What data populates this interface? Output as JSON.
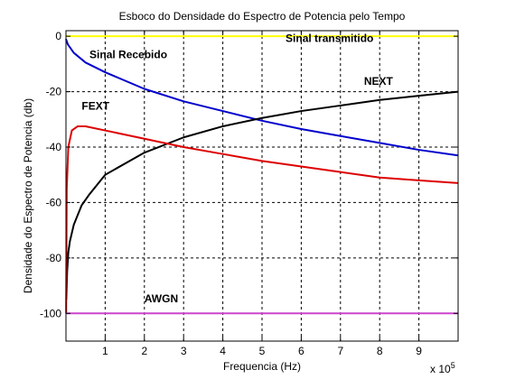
{
  "chart_data": {
    "type": "line",
    "title": "Esboco do Densidade do Espectro de Potencia pelo Tempo",
    "xlabel": "Frequencia (Hz)",
    "ylabel": "Densidade do Espectro de Potencia (db)",
    "x_exponent_label": "x 10",
    "x_exponent_power": "5",
    "xlim": [
      0,
      1000000
    ],
    "ylim": [
      -110,
      2
    ],
    "x_ticks": [
      100000,
      200000,
      300000,
      400000,
      500000,
      600000,
      700000,
      800000,
      900000
    ],
    "x_tick_labels": [
      "1",
      "2",
      "3",
      "4",
      "5",
      "6",
      "7",
      "8",
      "9"
    ],
    "y_ticks": [
      0,
      -20,
      -40,
      -60,
      -80,
      -100
    ],
    "y_tick_labels": [
      "0",
      "-20",
      "-40",
      "-60",
      "-80",
      "-100"
    ],
    "grid": true,
    "series": [
      {
        "name": "Sinal transmitido",
        "color": "#ffff00",
        "x": [
          0,
          1000000
        ],
        "y": [
          0,
          0
        ]
      },
      {
        "name": "Sinal Recebido",
        "color": "#0000cc",
        "x": [
          0,
          5000,
          20000,
          50000,
          100000,
          200000,
          300000,
          400000,
          500000,
          600000,
          700000,
          800000,
          900000,
          1000000
        ],
        "y": [
          -1,
          -3,
          -6,
          -9.5,
          -13,
          -19,
          -23.5,
          -27,
          -30.5,
          -33.5,
          -36,
          -38.5,
          -41,
          -43
        ]
      },
      {
        "name": "NEXT",
        "color": "#000000",
        "x": [
          1000,
          3000,
          6000,
          10000,
          20000,
          40000,
          60000,
          100000,
          200000,
          300000,
          400000,
          500000,
          600000,
          700000,
          800000,
          900000,
          1000000
        ],
        "y": [
          -95,
          -85,
          -78,
          -74,
          -68,
          -61,
          -57,
          -50,
          -42,
          -36.5,
          -32.5,
          -29.5,
          -27,
          -25,
          -23,
          -21.5,
          -20
        ]
      },
      {
        "name": "FEXT",
        "color": "#dd0000",
        "x": [
          500,
          2000,
          6000,
          15000,
          30000,
          50000,
          100000,
          200000,
          300000,
          400000,
          500000,
          600000,
          700000,
          800000,
          900000,
          1000000
        ],
        "y": [
          -100,
          -55,
          -40,
          -34,
          -32.5,
          -32.5,
          -34,
          -37,
          -40,
          -42.5,
          -45,
          -47,
          -49,
          -51,
          -52,
          -53
        ]
      },
      {
        "name": "AWGN",
        "color": "#cc44cc",
        "x": [
          0,
          1000000
        ],
        "y": [
          -100,
          -100
        ]
      }
    ],
    "annotations": [
      {
        "text": "Sinal transmitido",
        "x": 560000,
        "y": -2
      },
      {
        "text": "Sinal Recebido",
        "x": 60000,
        "y": -8
      },
      {
        "text": "NEXT",
        "x": 760000,
        "y": -17.5
      },
      {
        "text": "FEXT",
        "x": 40000,
        "y": -26.5
      },
      {
        "text": "AWGN",
        "x": 200000,
        "y": -96
      }
    ]
  }
}
